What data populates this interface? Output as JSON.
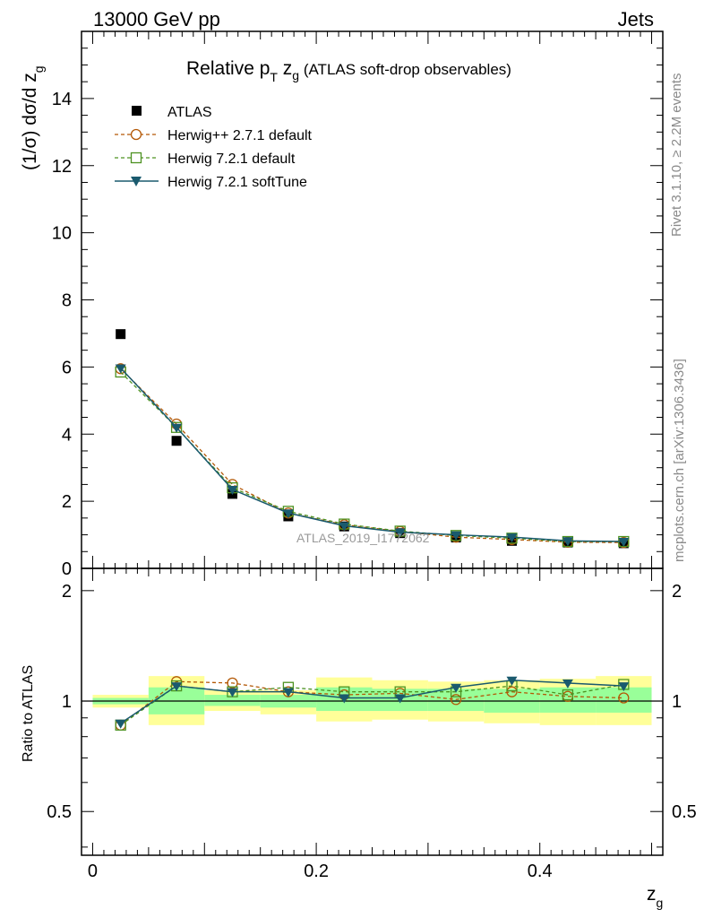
{
  "header": {
    "left": "13000 GeV pp",
    "right": "Jets"
  },
  "side_labels": {
    "rivet": "Rivet 3.1.10, ≥ 2.2M events",
    "mcplots": "mcplots.cern.ch [arXiv:1306.3436]"
  },
  "watermark": "ATLAS_2019_I1772062",
  "colors": {
    "atlas": "#000000",
    "herwigpp": "#b35806",
    "herwig721": "#4d9221",
    "softtune": "#1a5a6e",
    "band_outer": "#ffff99",
    "band_inner": "#99ff99"
  },
  "chart_data": [
    {
      "type": "line",
      "title": "Relative p_T z_g (ATLAS soft-drop observables)",
      "title_parts": {
        "main": "Relative p",
        "sub1": "T",
        "mid": " z",
        "sub2": "g",
        "tail": " (ATLAS soft-drop observables)"
      },
      "xlabel": "z_g",
      "ylabel": "(1/σ) dσ/d z_g",
      "ylabel_parts": {
        "main": "(1/σ) dσ/d z",
        "sub": "g"
      },
      "xlim": [
        -0.01,
        0.51
      ],
      "ylim": [
        0,
        16
      ],
      "x_ticks": [
        "0",
        "0.2",
        "0.4"
      ],
      "y_ticks": [
        "0",
        "2",
        "4",
        "6",
        "8",
        "10",
        "12",
        "14"
      ],
      "legend_position": "top-left",
      "legend": [
        "ATLAS",
        "Herwig++ 2.7.1 default",
        "Herwig 7.2.1 default",
        "Herwig 7.2.1 softTune"
      ],
      "x": [
        0.025,
        0.075,
        0.125,
        0.175,
        0.225,
        0.275,
        0.325,
        0.375,
        0.425,
        0.475
      ],
      "series": [
        {
          "name": "ATLAS",
          "marker": "filled-square",
          "values": [
            6.98,
            3.8,
            2.22,
            1.55,
            1.25,
            1.05,
            0.92,
            0.82,
            0.77,
            0.75
          ]
        },
        {
          "name": "Herwig++ 2.7.1 default",
          "marker": "open-circle",
          "dashed": true,
          "values": [
            5.95,
            4.3,
            2.5,
            1.65,
            1.3,
            1.1,
            0.93,
            0.86,
            0.78,
            0.77
          ]
        },
        {
          "name": "Herwig 7.2.1 default",
          "marker": "open-square",
          "dashed": true,
          "values": [
            5.85,
            4.2,
            2.4,
            1.7,
            1.32,
            1.11,
            0.98,
            0.9,
            0.8,
            0.8
          ]
        },
        {
          "name": "Herwig 7.2.1 softTune",
          "marker": "filled-triangle-down",
          "dashed": false,
          "values": [
            5.97,
            4.2,
            2.35,
            1.65,
            1.27,
            1.08,
            1.0,
            0.93,
            0.82,
            0.8
          ]
        }
      ]
    },
    {
      "type": "line",
      "ylabel": "Ratio to ATLAS",
      "xlim": [
        -0.01,
        0.51
      ],
      "ylim": [
        0.38,
        2.3
      ],
      "y_ticks": [
        "0.5",
        "1",
        "2"
      ],
      "x": [
        0.025,
        0.075,
        0.125,
        0.175,
        0.225,
        0.275,
        0.325,
        0.375,
        0.425,
        0.475
      ],
      "bins": [
        [
          0.0,
          0.05
        ],
        [
          0.05,
          0.1
        ],
        [
          0.1,
          0.15
        ],
        [
          0.15,
          0.2
        ],
        [
          0.2,
          0.25
        ],
        [
          0.25,
          0.3
        ],
        [
          0.3,
          0.35
        ],
        [
          0.35,
          0.4
        ],
        [
          0.4,
          0.45
        ],
        [
          0.45,
          0.5
        ]
      ],
      "band_outer": [
        [
          0.96,
          1.04
        ],
        [
          0.86,
          1.17
        ],
        [
          0.94,
          1.07
        ],
        [
          0.92,
          1.07
        ],
        [
          0.88,
          1.16
        ],
        [
          0.89,
          1.14
        ],
        [
          0.88,
          1.13
        ],
        [
          0.87,
          1.14
        ],
        [
          0.86,
          1.15
        ],
        [
          0.86,
          1.17
        ]
      ],
      "band_inner": [
        [
          0.98,
          1.02
        ],
        [
          0.92,
          1.09
        ],
        [
          0.97,
          1.04
        ],
        [
          0.96,
          1.04
        ],
        [
          0.94,
          1.09
        ],
        [
          0.94,
          1.08
        ],
        [
          0.94,
          1.08
        ],
        [
          0.93,
          1.08
        ],
        [
          0.93,
          1.09
        ],
        [
          0.93,
          1.09
        ]
      ],
      "series": [
        {
          "name": "Herwig++ 2.7.1 default",
          "values": [
            0.86,
            1.13,
            1.12,
            1.06,
            1.04,
            1.05,
            1.01,
            1.06,
            1.03,
            1.02
          ]
        },
        {
          "name": "Herwig 7.2.1 default",
          "values": [
            0.86,
            1.1,
            1.06,
            1.09,
            1.06,
            1.06,
            1.06,
            1.1,
            1.04,
            1.11
          ]
        },
        {
          "name": "Herwig 7.2.1 softTune",
          "values": [
            0.87,
            1.1,
            1.06,
            1.06,
            1.02,
            1.02,
            1.09,
            1.14,
            1.12,
            1.1
          ]
        }
      ]
    }
  ]
}
